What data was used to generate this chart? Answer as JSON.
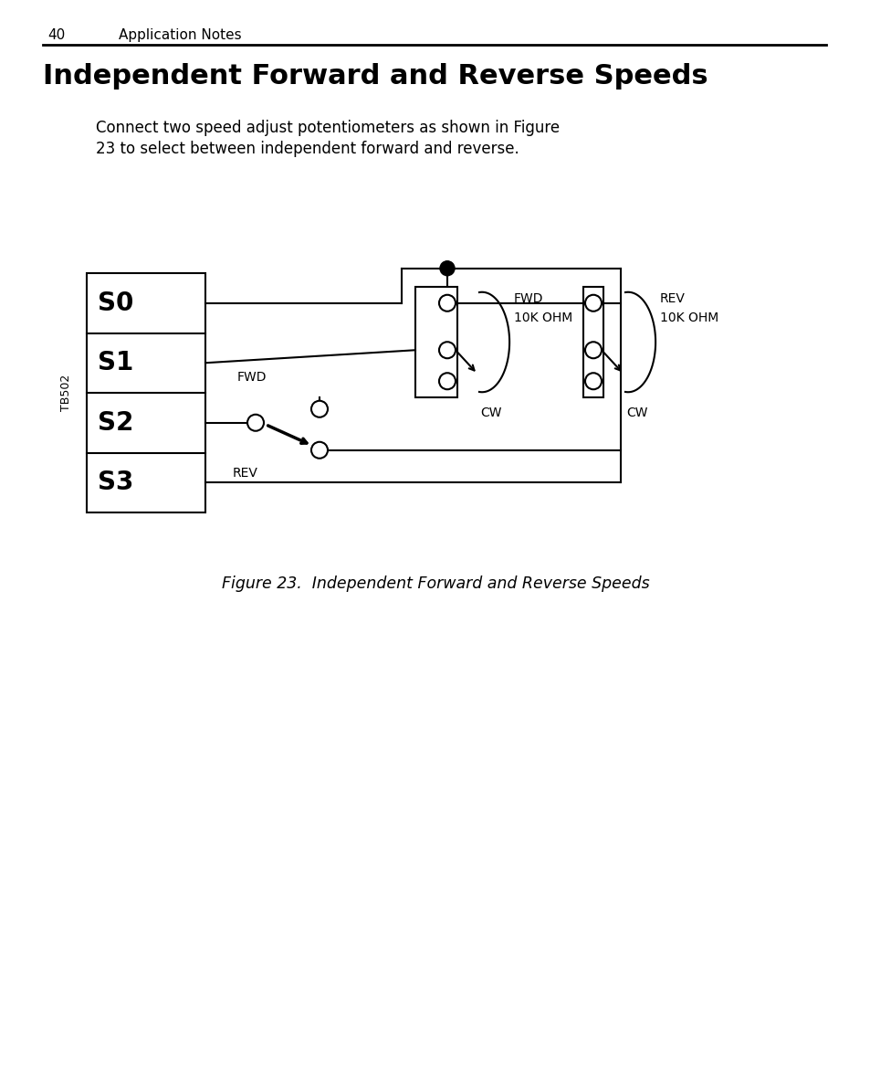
{
  "page_number": "40",
  "section_title": "Application Notes",
  "main_title": "Independent Forward and Reverse Speeds",
  "body_text_line1": "Connect two speed adjust potentiometers as shown in Figure",
  "body_text_line2": "23 to select between independent forward and reverse.",
  "figure_caption": "Figure 23.  Independent Forward and Reverse Speeds",
  "tb_label": "TB502",
  "terminal_labels": [
    "S0",
    "S1",
    "S2",
    "S3"
  ],
  "fwd_label": "FWD",
  "rev_label": "REV",
  "fwd_pot_line1": "FWD",
  "fwd_pot_line2": "10K OHM",
  "rev_pot_line1": "REV",
  "rev_pot_line2": "10K OHM",
  "cw_label": "CW",
  "background_color": "#ffffff",
  "line_color": "#000000",
  "text_color": "#000000"
}
